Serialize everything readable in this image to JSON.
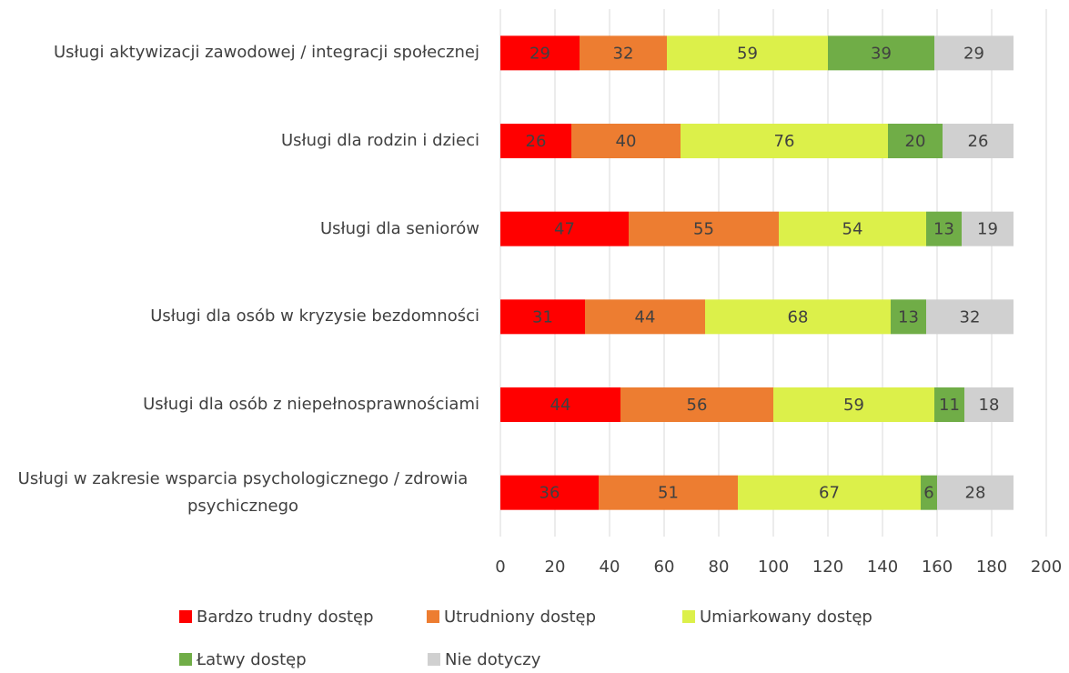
{
  "chart_data": {
    "type": "stacked-bar-horizontal",
    "categories": [
      "Usługi aktywizacji zawodowej / integracji społecznej",
      "Usługi dla rodzin i dzieci",
      "Usługi dla seniorów",
      "Usługi dla osób w kryzysie bezdomności",
      "Usługi dla osób z niepełnosprawnościami",
      "Usługi w zakresie wsparcia psychologicznego / zdrowia psychicznego"
    ],
    "series": [
      {
        "name": "Bardzo trudny dostęp",
        "color": "#ff0000",
        "values": [
          29,
          26,
          47,
          31,
          44,
          36
        ]
      },
      {
        "name": "Utrudniony dostęp",
        "color": "#ed7d31",
        "values": [
          32,
          40,
          55,
          44,
          56,
          51
        ]
      },
      {
        "name": "Umiarkowany dostęp",
        "color": "#dcf04a",
        "values": [
          59,
          76,
          54,
          68,
          59,
          67
        ]
      },
      {
        "name": "Łatwy dostęp",
        "color": "#70ad47",
        "values": [
          39,
          20,
          13,
          13,
          11,
          6
        ]
      },
      {
        "name": "Nie dotyczy",
        "color": "#d0d0d0",
        "values": [
          29,
          26,
          19,
          32,
          18,
          28
        ]
      }
    ],
    "xlim": [
      0,
      200
    ],
    "xticks": [
      0,
      20,
      40,
      60,
      80,
      100,
      120,
      140,
      160,
      180,
      200
    ],
    "grid": true,
    "legend": "bottom"
  }
}
